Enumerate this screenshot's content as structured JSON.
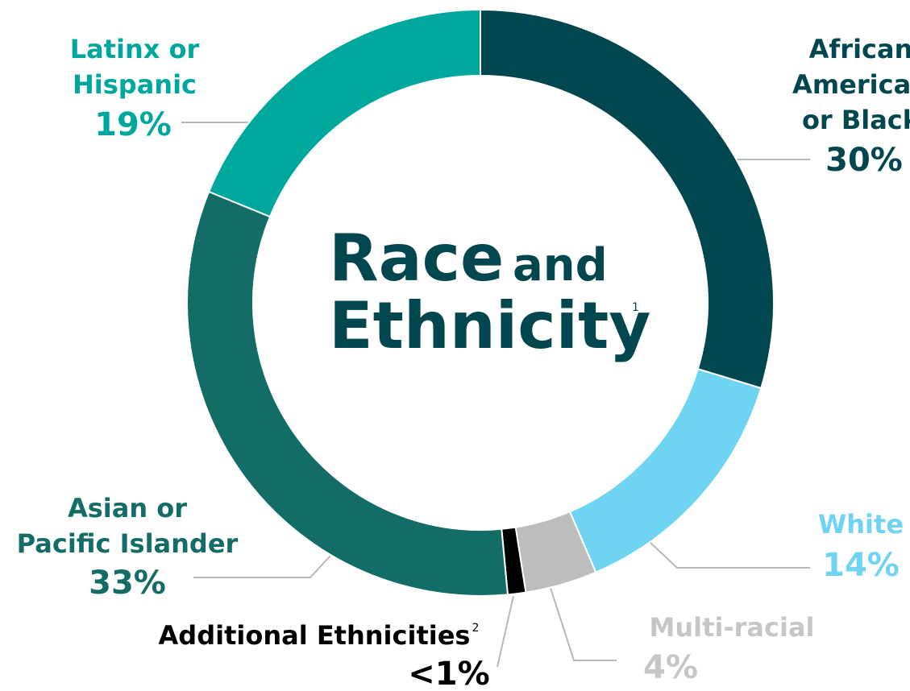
{
  "chart_data": {
    "type": "donut",
    "title": {
      "main": "Race",
      "joiner": "and",
      "second": "Ethnicity",
      "note": "1"
    },
    "categories": [
      [
        "African",
        "American",
        "or Black"
      ],
      [
        "White"
      ],
      [
        "Multi-racial"
      ],
      [
        "Additional Ethnicities"
      ],
      [
        "Asian or",
        "Pacific Islander"
      ],
      [
        "Latinx or",
        "Hispanic"
      ]
    ],
    "category_notes": {
      "3": "2"
    },
    "values": [
      30,
      14,
      4,
      1,
      33,
      19
    ],
    "value_labels": [
      "30%",
      "14%",
      "4%",
      "<1%",
      "33%",
      "19%"
    ],
    "colors": [
      "#02474f",
      "#6fd3f2",
      "#bdbdbd",
      "#000000",
      "#136d66",
      "#00a79d"
    ],
    "label_colors": [
      "#02474f",
      "#6fd3f2",
      "#c6c6c6",
      "#000000",
      "#136d66",
      "#00a79d"
    ]
  }
}
